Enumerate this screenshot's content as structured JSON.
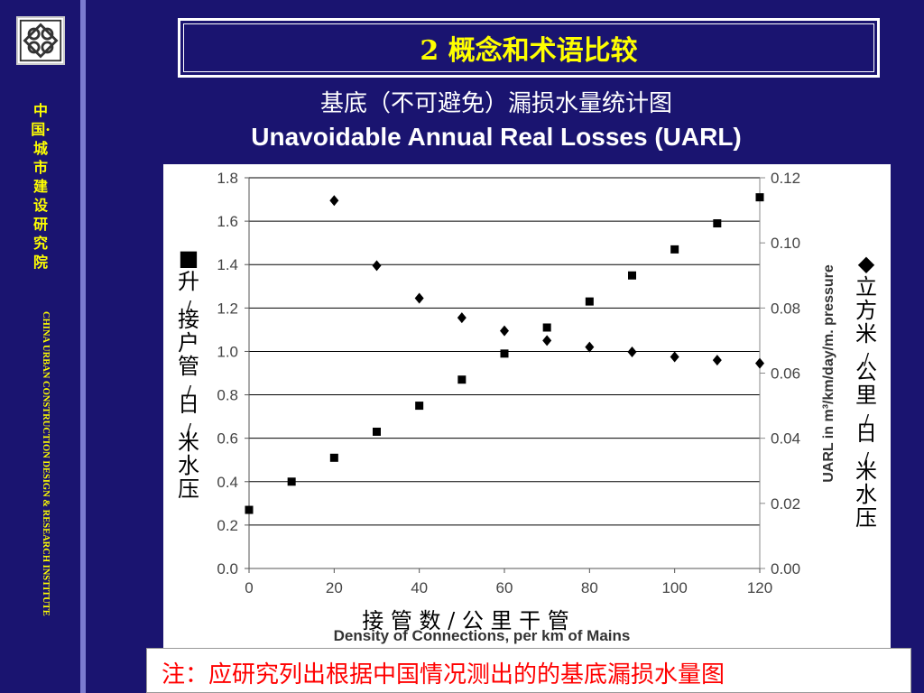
{
  "sidebar": {
    "org_cn": "中国·城市建设研究院",
    "org_en": "CHINA URBAN CONSTRUCTION DESIGN & RESEARCH INSTITUTE"
  },
  "slide": {
    "title": "2 概念和术语比较",
    "subtitle_cn": "基底（不可避免）漏损水量统计图",
    "subtitle_en": "Unavoidable Annual Real Losses (UARL)",
    "note": "注：应研究列出根据中国情况测出的的基底漏损水量图"
  },
  "chart_data": {
    "type": "scatter",
    "x_label_cn": "接 管 数 / 公 里 干 管",
    "xlabel": "Density of Connections, per km of Mains",
    "y_left_label_cn": "升/接户管/日/米水压",
    "y_left_marker": "■",
    "y_right_label_cn": "立方米/公里/日/米水压",
    "y_right_marker": "◆",
    "y_right_label": "UARL in m³/km/day/m. pressure",
    "xlim": [
      0,
      120
    ],
    "ylim_left": [
      0,
      1.8
    ],
    "ylim_right": [
      0,
      0.12
    ],
    "x_ticks": [
      "0",
      "20",
      "40",
      "60",
      "80",
      "100",
      "120"
    ],
    "y_left_ticks": [
      "0.0",
      "0.2",
      "0.4",
      "0.6",
      "0.8",
      "1.0",
      "1.2",
      "1.4",
      "1.6",
      "1.8"
    ],
    "y_right_ticks": [
      "0.00",
      "0.02",
      "0.04",
      "0.06",
      "0.08",
      "0.10",
      "0.12"
    ],
    "grid": true,
    "series": [
      {
        "marker": "square",
        "axis": "left",
        "x": [
          0,
          10,
          20,
          30,
          40,
          50,
          60,
          70,
          80,
          90,
          100,
          110,
          120
        ],
        "y": [
          0.27,
          0.4,
          0.51,
          0.63,
          0.75,
          0.87,
          0.99,
          1.11,
          1.23,
          1.35,
          1.47,
          1.59,
          1.71
        ]
      },
      {
        "marker": "diamond",
        "axis": "right",
        "x": [
          20,
          30,
          40,
          50,
          60,
          70,
          80,
          90,
          100,
          110,
          120
        ],
        "y": [
          0.113,
          0.093,
          0.083,
          0.077,
          0.073,
          0.07,
          0.068,
          0.0665,
          0.065,
          0.064,
          0.063
        ]
      }
    ]
  }
}
